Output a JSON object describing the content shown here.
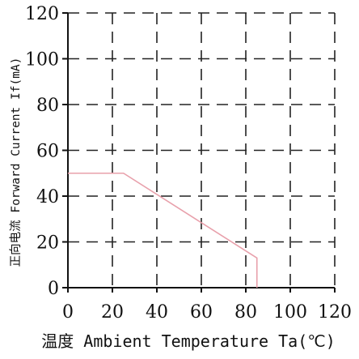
{
  "chart_data": {
    "type": "line",
    "xlabel": "温度 Ambient Temperature Ta(℃)",
    "ylabel": "正向电流 Forward Current If(mA)",
    "xlim": [
      0,
      120
    ],
    "ylim": [
      0,
      120
    ],
    "x_ticks": [
      0,
      20,
      40,
      60,
      80,
      100,
      120
    ],
    "y_ticks": [
      0,
      20,
      40,
      60,
      80,
      100,
      120
    ],
    "x_tick_labels": [
      "0",
      "20",
      "40",
      "60",
      "80",
      "100",
      "120"
    ],
    "y_tick_labels": [
      "0",
      "20",
      "40",
      "60",
      "80",
      "100",
      "120"
    ],
    "grid": true,
    "grid_style": "dashed",
    "series": [
      {
        "color": "#e8a0ab",
        "x": [
          0,
          25,
          85,
          85
        ],
        "y": [
          50,
          50,
          13,
          0
        ]
      }
    ]
  }
}
